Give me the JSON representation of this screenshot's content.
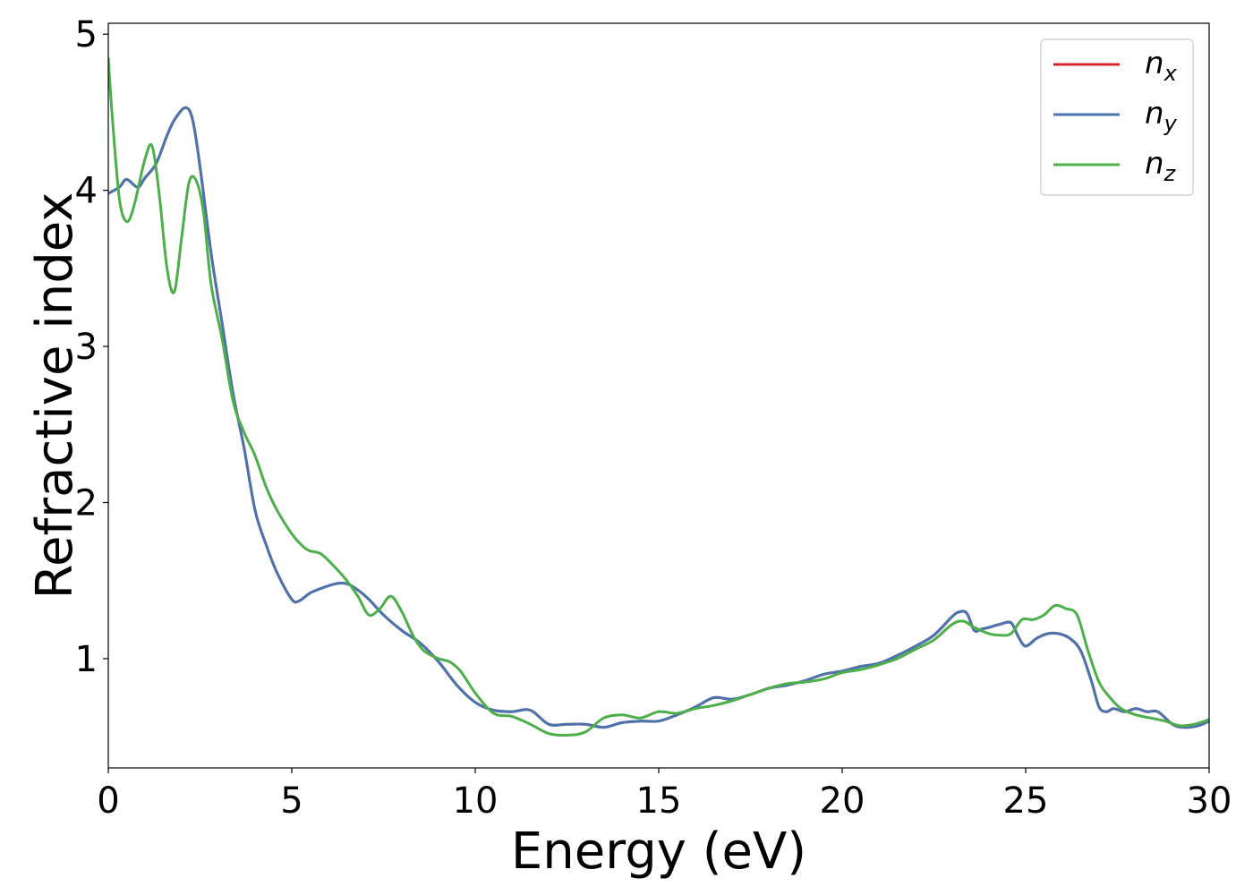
{
  "chart_data": {
    "type": "line",
    "xlabel": "Energy (eV)",
    "ylabel": "Refractive index",
    "xlim": [
      0,
      30
    ],
    "ylim": [
      0.3,
      5.07
    ],
    "x_ticks": [
      "0",
      "5",
      "10",
      "15",
      "20",
      "25",
      "30"
    ],
    "y_ticks": [
      "1",
      "2",
      "3",
      "4",
      "5"
    ],
    "grid": false,
    "legend_position": "top-right",
    "series": [
      {
        "name": "x",
        "color": "#d62728",
        "x": [
          0,
          0.3,
          0.5,
          0.8,
          1.0,
          1.3,
          1.6,
          1.8,
          2.1,
          2.3,
          2.5,
          2.8,
          3.1,
          3.4,
          3.7,
          4.0,
          4.3,
          4.6,
          5.0,
          5.2,
          5.5,
          5.8,
          6.2,
          6.5,
          6.8,
          7.1,
          7.5,
          8.0,
          8.5,
          9.0,
          9.5,
          10.0,
          10.5,
          11.0,
          11.5,
          12.0,
          12.5,
          13.0,
          13.5,
          14.0,
          14.5,
          15.0,
          15.5,
          16.0,
          16.5,
          17.0,
          17.5,
          18.0,
          18.5,
          19.0,
          19.5,
          20.0,
          20.5,
          21.0,
          21.5,
          22.0,
          22.5,
          23.0,
          23.2,
          23.4,
          23.6,
          23.8,
          24.0,
          24.3,
          24.6,
          24.8,
          25.0,
          25.3,
          25.6,
          25.9,
          26.2,
          26.5,
          26.8,
          27.0,
          27.2,
          27.4,
          27.7,
          28.0,
          28.3,
          28.6,
          29.0,
          29.3,
          29.7,
          30.0
        ],
        "values": [
          3.98,
          4.02,
          4.07,
          4.02,
          4.08,
          4.17,
          4.35,
          4.45,
          4.53,
          4.45,
          4.15,
          3.6,
          3.15,
          2.7,
          2.35,
          1.95,
          1.73,
          1.55,
          1.38,
          1.37,
          1.42,
          1.45,
          1.48,
          1.48,
          1.44,
          1.38,
          1.28,
          1.18,
          1.1,
          0.98,
          0.83,
          0.72,
          0.67,
          0.66,
          0.67,
          0.58,
          0.58,
          0.58,
          0.56,
          0.59,
          0.6,
          0.6,
          0.64,
          0.69,
          0.75,
          0.74,
          0.77,
          0.81,
          0.83,
          0.86,
          0.9,
          0.92,
          0.95,
          0.97,
          1.02,
          1.08,
          1.15,
          1.27,
          1.3,
          1.29,
          1.18,
          1.19,
          1.2,
          1.22,
          1.23,
          1.14,
          1.08,
          1.13,
          1.16,
          1.16,
          1.13,
          1.05,
          0.85,
          0.69,
          0.66,
          0.68,
          0.66,
          0.68,
          0.66,
          0.66,
          0.58,
          0.56,
          0.57,
          0.6
        ]
      },
      {
        "name": "y",
        "color": "#4a74b0",
        "x": [
          0,
          0.3,
          0.5,
          0.8,
          1.0,
          1.3,
          1.6,
          1.8,
          2.1,
          2.3,
          2.5,
          2.8,
          3.1,
          3.4,
          3.7,
          4.0,
          4.3,
          4.6,
          5.0,
          5.2,
          5.5,
          5.8,
          6.2,
          6.5,
          6.8,
          7.1,
          7.5,
          8.0,
          8.5,
          9.0,
          9.5,
          10.0,
          10.5,
          11.0,
          11.5,
          12.0,
          12.5,
          13.0,
          13.5,
          14.0,
          14.5,
          15.0,
          15.5,
          16.0,
          16.5,
          17.0,
          17.5,
          18.0,
          18.5,
          19.0,
          19.5,
          20.0,
          20.5,
          21.0,
          21.5,
          22.0,
          22.5,
          23.0,
          23.2,
          23.4,
          23.6,
          23.8,
          24.0,
          24.3,
          24.6,
          24.8,
          25.0,
          25.3,
          25.6,
          25.9,
          26.2,
          26.5,
          26.8,
          27.0,
          27.2,
          27.4,
          27.7,
          28.0,
          28.3,
          28.6,
          29.0,
          29.3,
          29.7,
          30.0
        ],
        "values": [
          3.98,
          4.02,
          4.07,
          4.02,
          4.08,
          4.17,
          4.35,
          4.45,
          4.53,
          4.45,
          4.15,
          3.6,
          3.15,
          2.7,
          2.35,
          1.95,
          1.73,
          1.55,
          1.38,
          1.37,
          1.42,
          1.45,
          1.48,
          1.48,
          1.44,
          1.38,
          1.28,
          1.18,
          1.1,
          0.98,
          0.83,
          0.72,
          0.67,
          0.66,
          0.67,
          0.58,
          0.58,
          0.58,
          0.56,
          0.59,
          0.6,
          0.6,
          0.64,
          0.69,
          0.75,
          0.74,
          0.77,
          0.81,
          0.83,
          0.86,
          0.9,
          0.92,
          0.95,
          0.97,
          1.02,
          1.08,
          1.15,
          1.27,
          1.3,
          1.29,
          1.18,
          1.19,
          1.2,
          1.22,
          1.23,
          1.14,
          1.08,
          1.13,
          1.16,
          1.16,
          1.13,
          1.05,
          0.85,
          0.69,
          0.66,
          0.68,
          0.66,
          0.68,
          0.66,
          0.66,
          0.58,
          0.56,
          0.57,
          0.6
        ]
      },
      {
        "name": "z",
        "color": "#4daf4a",
        "x": [
          0,
          0.1,
          0.3,
          0.5,
          0.7,
          1.0,
          1.2,
          1.4,
          1.6,
          1.8,
          2.0,
          2.2,
          2.4,
          2.6,
          2.8,
          3.1,
          3.4,
          3.7,
          4.0,
          4.3,
          4.6,
          5.0,
          5.3,
          5.5,
          5.8,
          6.2,
          6.5,
          6.8,
          7.1,
          7.4,
          7.7,
          8.0,
          8.3,
          8.6,
          9.0,
          9.3,
          9.6,
          10.0,
          10.5,
          11.0,
          11.5,
          12.0,
          12.5,
          13.0,
          13.5,
          14.0,
          14.5,
          15.0,
          15.5,
          16.0,
          16.5,
          17.0,
          17.5,
          18.0,
          18.5,
          19.0,
          19.5,
          20.0,
          20.5,
          21.0,
          21.5,
          22.0,
          22.5,
          23.0,
          23.3,
          23.6,
          24.0,
          24.3,
          24.6,
          24.9,
          25.2,
          25.5,
          25.8,
          26.1,
          26.4,
          26.7,
          27.0,
          27.3,
          27.6,
          28.0,
          28.4,
          28.8,
          29.2,
          29.6,
          30.0
        ],
        "values": [
          4.85,
          4.5,
          3.95,
          3.8,
          3.9,
          4.2,
          4.28,
          3.95,
          3.5,
          3.35,
          3.7,
          4.05,
          4.06,
          3.85,
          3.4,
          3.05,
          2.65,
          2.45,
          2.3,
          2.1,
          1.95,
          1.8,
          1.72,
          1.69,
          1.67,
          1.58,
          1.5,
          1.4,
          1.28,
          1.32,
          1.4,
          1.3,
          1.15,
          1.05,
          1.0,
          0.98,
          0.92,
          0.78,
          0.65,
          0.63,
          0.58,
          0.52,
          0.51,
          0.53,
          0.62,
          0.64,
          0.62,
          0.66,
          0.65,
          0.68,
          0.7,
          0.73,
          0.77,
          0.81,
          0.84,
          0.85,
          0.87,
          0.91,
          0.93,
          0.96,
          1.0,
          1.06,
          1.12,
          1.22,
          1.24,
          1.2,
          1.16,
          1.15,
          1.16,
          1.25,
          1.25,
          1.28,
          1.34,
          1.32,
          1.28,
          1.05,
          0.85,
          0.75,
          0.68,
          0.64,
          0.62,
          0.6,
          0.57,
          0.58,
          0.61
        ]
      }
    ]
  }
}
